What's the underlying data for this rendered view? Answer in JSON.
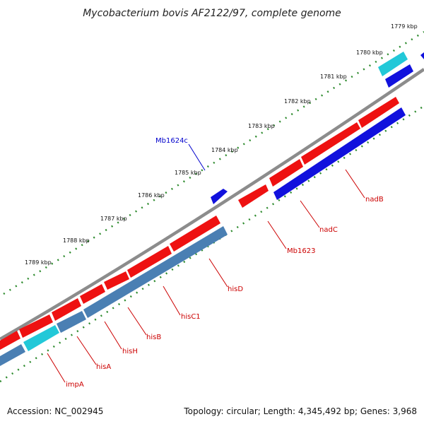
{
  "title": "Mycobacterium bovis AF2122/97, complete genome",
  "footer": {
    "accession": "Accession: NC_002945",
    "summary": "Topology: circular; Length: 4,345,492 bp; Genes: 3,968"
  },
  "colors": {
    "backbone": "#888888",
    "tick": "#2e8b2e",
    "red_gene": "#ee1111",
    "blue_gene": "#1111dd",
    "steel_gene": "#4a7fb3",
    "cyan_gene": "#22c8d8",
    "label_red": "#cc0000",
    "label_blue": "#0000cc"
  },
  "kbp_labels": [
    "1779 kbp",
    "1780 kbp",
    "1781 kbp",
    "1782 kbp",
    "1783 kbp",
    "1784 kbp",
    "1785 kbp",
    "1786 kbp",
    "1787 kbp",
    "1788 kbp",
    "1789 kbp"
  ],
  "gene_labels": [
    {
      "name": "Mb1624c",
      "color": "blue"
    },
    {
      "name": "nadB",
      "color": "red"
    },
    {
      "name": "nadC",
      "color": "red"
    },
    {
      "name": "Mb1623",
      "color": "red"
    },
    {
      "name": "hisD",
      "color": "red"
    },
    {
      "name": "hisC1",
      "color": "red"
    },
    {
      "name": "hisB",
      "color": "red"
    },
    {
      "name": "hisH",
      "color": "red"
    },
    {
      "name": "hisA",
      "color": "red"
    },
    {
      "name": "impA",
      "color": "red"
    }
  ]
}
